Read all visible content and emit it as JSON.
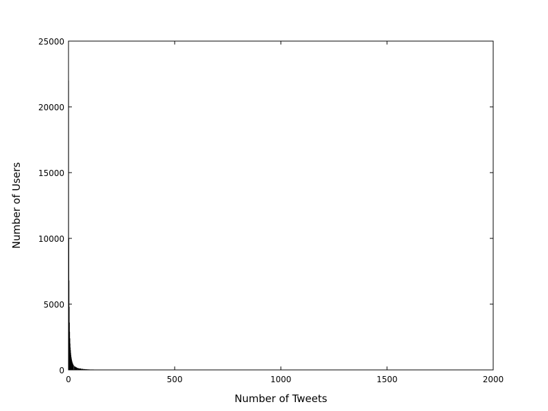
{
  "chart_data": {
    "type": "bar",
    "title": "",
    "xlabel": "Number of Tweets",
    "ylabel": "Number of Users",
    "xlim": [
      0,
      2000
    ],
    "ylim": [
      0,
      25000
    ],
    "xticks": [
      0,
      500,
      1000,
      1500,
      2000
    ],
    "yticks": [
      0,
      5000,
      10000,
      15000,
      20000,
      25000
    ],
    "grid": false,
    "legend": "none",
    "bar_color": "#000000",
    "x": [
      1,
      2,
      3,
      4,
      5,
      6,
      7,
      8,
      9,
      10,
      11,
      12,
      13,
      14,
      15,
      16,
      17,
      18,
      19,
      20,
      22,
      24,
      26,
      28,
      30,
      35,
      40,
      45,
      50,
      60,
      70,
      80,
      90,
      100,
      120,
      140,
      160,
      180,
      200,
      220,
      240
    ],
    "values": [
      22000,
      10000,
      6800,
      4800,
      3600,
      2900,
      2400,
      2000,
      1700,
      1500,
      1300,
      1150,
      1000,
      900,
      800,
      720,
      650,
      590,
      540,
      500,
      430,
      370,
      320,
      280,
      250,
      200,
      160,
      130,
      110,
      80,
      60,
      48,
      38,
      30,
      22,
      16,
      12,
      9,
      7,
      5,
      4
    ]
  }
}
